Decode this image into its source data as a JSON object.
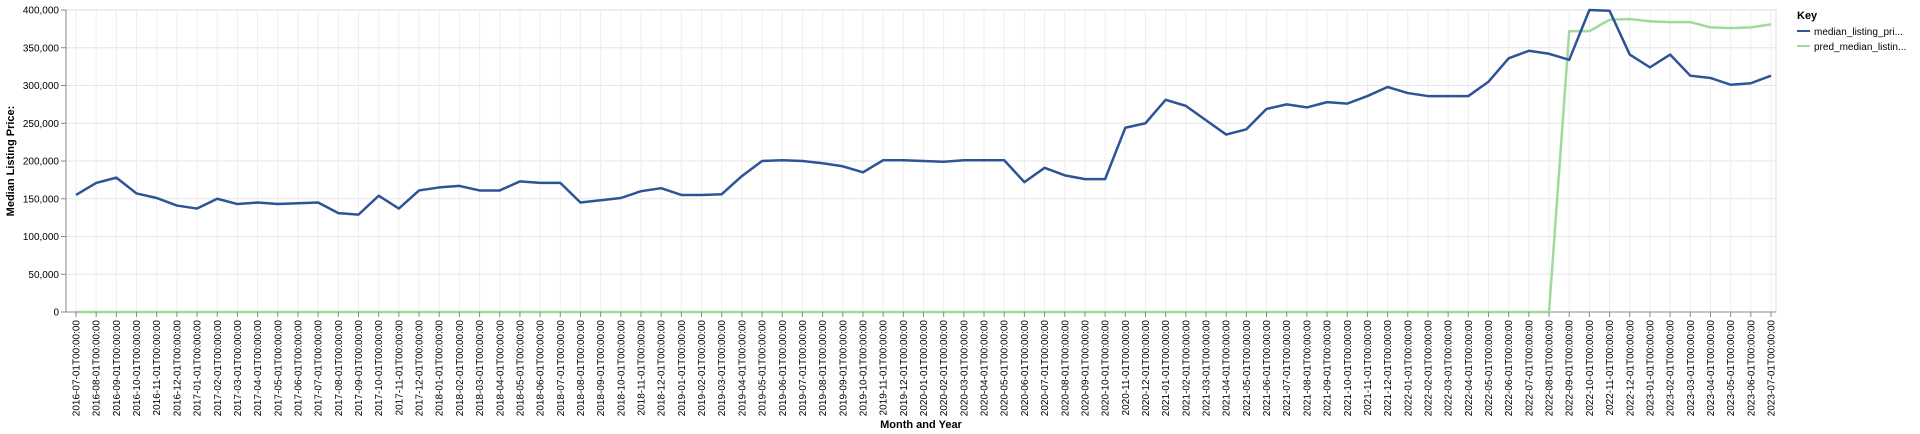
{
  "chart_data": {
    "type": "line",
    "title": "",
    "xlabel": "Month and Year",
    "ylabel": "Median Listing Price:",
    "ylim": [
      0,
      400000
    ],
    "yticks": [
      0,
      50000,
      100000,
      150000,
      200000,
      250000,
      300000,
      350000,
      400000
    ],
    "ytick_labels": [
      "0",
      "50,000",
      "100,000",
      "150,000",
      "200,000",
      "250,000",
      "300,000",
      "350,000",
      "400,000"
    ],
    "grid": true,
    "legend_position": "right",
    "legend_title": "Key",
    "categories": [
      "2016-07-01T00:00:00",
      "2016-08-01T00:00:00",
      "2016-09-01T00:00:00",
      "2016-10-01T00:00:00",
      "2016-11-01T00:00:00",
      "2016-12-01T00:00:00",
      "2017-01-01T00:00:00",
      "2017-02-01T00:00:00",
      "2017-03-01T00:00:00",
      "2017-04-01T00:00:00",
      "2017-05-01T00:00:00",
      "2017-06-01T00:00:00",
      "2017-07-01T00:00:00",
      "2017-08-01T00:00:00",
      "2017-09-01T00:00:00",
      "2017-10-01T00:00:00",
      "2017-11-01T00:00:00",
      "2017-12-01T00:00:00",
      "2018-01-01T00:00:00",
      "2018-02-01T00:00:00",
      "2018-03-01T00:00:00",
      "2018-04-01T00:00:00",
      "2018-05-01T00:00:00",
      "2018-06-01T00:00:00",
      "2018-07-01T00:00:00",
      "2018-08-01T00:00:00",
      "2018-09-01T00:00:00",
      "2018-10-01T00:00:00",
      "2018-11-01T00:00:00",
      "2018-12-01T00:00:00",
      "2019-01-01T00:00:00",
      "2019-02-01T00:00:00",
      "2019-03-01T00:00:00",
      "2019-04-01T00:00:00",
      "2019-05-01T00:00:00",
      "2019-06-01T00:00:00",
      "2019-07-01T00:00:00",
      "2019-08-01T00:00:00",
      "2019-09-01T00:00:00",
      "2019-10-01T00:00:00",
      "2019-11-01T00:00:00",
      "2019-12-01T00:00:00",
      "2020-01-01T00:00:00",
      "2020-02-01T00:00:00",
      "2020-03-01T00:00:00",
      "2020-04-01T00:00:00",
      "2020-05-01T00:00:00",
      "2020-06-01T00:00:00",
      "2020-07-01T00:00:00",
      "2020-08-01T00:00:00",
      "2020-09-01T00:00:00",
      "2020-10-01T00:00:00",
      "2020-11-01T00:00:00",
      "2020-12-01T00:00:00",
      "2021-01-01T00:00:00",
      "2021-02-01T00:00:00",
      "2021-03-01T00:00:00",
      "2021-04-01T00:00:00",
      "2021-05-01T00:00:00",
      "2021-06-01T00:00:00",
      "2021-07-01T00:00:00",
      "2021-08-01T00:00:00",
      "2021-09-01T00:00:00",
      "2021-10-01T00:00:00",
      "2021-11-01T00:00:00",
      "2021-12-01T00:00:00",
      "2022-01-01T00:00:00",
      "2022-02-01T00:00:00",
      "2022-03-01T00:00:00",
      "2022-04-01T00:00:00",
      "2022-05-01T00:00:00",
      "2022-06-01T00:00:00",
      "2022-07-01T00:00:00",
      "2022-08-01T00:00:00",
      "2022-09-01T00:00:00",
      "2022-10-01T00:00:00",
      "2022-11-01T00:00:00",
      "2022-12-01T00:00:00",
      "2023-01-01T00:00:00",
      "2023-02-01T00:00:00",
      "2023-03-01T00:00:00",
      "2023-04-01T00:00:00",
      "2023-05-01T00:00:00",
      "2023-06-01T00:00:00",
      "2023-07-01T00:00:00"
    ],
    "series": [
      {
        "name": "median_listing_pri...",
        "color": "#2c5496",
        "values": [
          155000,
          171000,
          178000,
          157000,
          151000,
          141000,
          137000,
          150000,
          143000,
          145000,
          143000,
          144000,
          145000,
          131000,
          129000,
          154000,
          137000,
          161000,
          165000,
          167000,
          161000,
          161000,
          173000,
          171000,
          171000,
          145000,
          148000,
          151000,
          160000,
          164000,
          155000,
          155000,
          156000,
          180000,
          200000,
          201000,
          200000,
          197000,
          193000,
          185000,
          201000,
          201000,
          200000,
          199000,
          201000,
          201000,
          201000,
          172000,
          191000,
          181000,
          176000,
          176000,
          244000,
          250000,
          281000,
          273000,
          254000,
          235000,
          242000,
          269000,
          275000,
          271000,
          278000,
          276000,
          286000,
          298000,
          290000,
          286000,
          286000,
          286000,
          305000,
          336000,
          346000,
          342000,
          334000,
          400000,
          399000,
          341000,
          324000,
          341000,
          313000,
          310000,
          301000,
          303000,
          313000
        ]
      },
      {
        "name": "pred_median_listin...",
        "color": "#a1d99b",
        "values": [
          0,
          0,
          0,
          0,
          0,
          0,
          0,
          0,
          0,
          0,
          0,
          0,
          0,
          0,
          0,
          0,
          0,
          0,
          0,
          0,
          0,
          0,
          0,
          0,
          0,
          0,
          0,
          0,
          0,
          0,
          0,
          0,
          0,
          0,
          0,
          0,
          0,
          0,
          0,
          0,
          0,
          0,
          0,
          0,
          0,
          0,
          0,
          0,
          0,
          0,
          0,
          0,
          0,
          0,
          0,
          0,
          0,
          0,
          0,
          0,
          0,
          0,
          0,
          0,
          0,
          0,
          0,
          0,
          0,
          0,
          0,
          0,
          0,
          0,
          372000,
          372000,
          387000,
          388000,
          385000,
          384000,
          384000,
          377000,
          376000,
          377000,
          381000
        ]
      }
    ]
  }
}
